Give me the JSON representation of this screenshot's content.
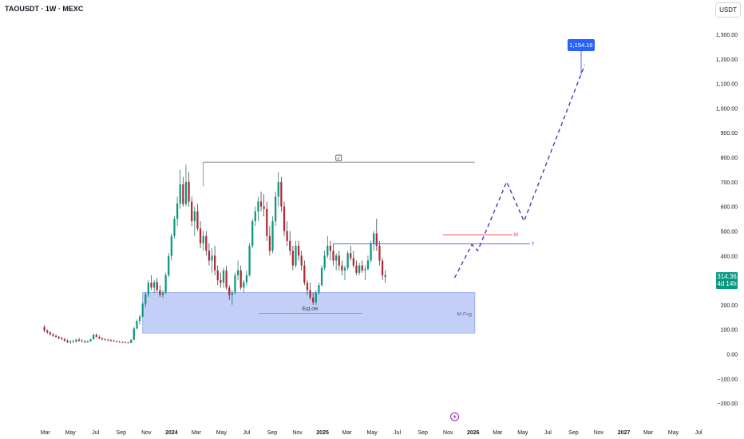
{
  "header": {
    "symbol": "TAOUSDT · 1W · MEXC",
    "currency_button": "USDT"
  },
  "last_price": {
    "value": "314.36",
    "countdown": "4d 14h",
    "color": "#089981"
  },
  "colors": {
    "up": "#089981",
    "down": "#b22833",
    "zone_fill": "#b9c7f5",
    "zone_stroke": "#8b9fe0",
    "projection": "#3f2bb5",
    "level_m": "#f23645",
    "level_y": "#2962ff",
    "box_line": "#787b86",
    "accent": "#9c27b0"
  },
  "chart_data": {
    "type": "candlestick",
    "title": "TAOUSDT · 1W · MEXC",
    "y_unit": "USDT",
    "ylim": [
      -240,
      1330
    ],
    "y_ticks": [
      -200,
      -100,
      0,
      100,
      200,
      300,
      400,
      500,
      600,
      700,
      800,
      900,
      1000,
      1100,
      1200,
      1300
    ],
    "y_tick_labels": [
      "−200.00",
      "−100.00",
      "0.00",
      "100.00",
      "200.00",
      "300.00",
      "400.00",
      "500.00",
      "600.00",
      "700.00",
      "800.00",
      "900.00",
      "1,000.00",
      "1,100.00",
      "1,200.00",
      "1,300.00"
    ],
    "x_range": [
      "2023-02-20",
      "2027-07-26"
    ],
    "x_ticks": [
      {
        "date": "2023-03-01",
        "label": "Mar",
        "bold": false
      },
      {
        "date": "2023-05-01",
        "label": "May",
        "bold": false
      },
      {
        "date": "2023-07-01",
        "label": "Jul",
        "bold": false
      },
      {
        "date": "2023-09-01",
        "label": "Sep",
        "bold": false
      },
      {
        "date": "2023-11-01",
        "label": "Nov",
        "bold": false
      },
      {
        "date": "2024-01-01",
        "label": "2024",
        "bold": true
      },
      {
        "date": "2024-03-01",
        "label": "Mar",
        "bold": false
      },
      {
        "date": "2024-05-01",
        "label": "May",
        "bold": false
      },
      {
        "date": "2024-07-01",
        "label": "Jul",
        "bold": false
      },
      {
        "date": "2024-09-01",
        "label": "Sep",
        "bold": false
      },
      {
        "date": "2024-11-01",
        "label": "Nov",
        "bold": false
      },
      {
        "date": "2025-01-01",
        "label": "2025",
        "bold": true
      },
      {
        "date": "2025-03-01",
        "label": "Mar",
        "bold": false
      },
      {
        "date": "2025-05-01",
        "label": "May",
        "bold": false
      },
      {
        "date": "2025-07-01",
        "label": "Jul",
        "bold": false
      },
      {
        "date": "2025-09-01",
        "label": "Sep",
        "bold": false
      },
      {
        "date": "2025-11-01",
        "label": "Nov",
        "bold": false
      },
      {
        "date": "2026-01-01",
        "label": "2026",
        "bold": true
      },
      {
        "date": "2026-03-01",
        "label": "Mar",
        "bold": false
      },
      {
        "date": "2026-05-01",
        "label": "May",
        "bold": false
      },
      {
        "date": "2026-07-01",
        "label": "Jul",
        "bold": false
      },
      {
        "date": "2026-09-01",
        "label": "Sep",
        "bold": false
      },
      {
        "date": "2026-11-01",
        "label": "Nov",
        "bold": false
      },
      {
        "date": "2027-01-01",
        "label": "2027",
        "bold": true
      },
      {
        "date": "2027-03-01",
        "label": "Mar",
        "bold": false
      },
      {
        "date": "2027-05-01",
        "label": "May",
        "bold": false
      },
      {
        "date": "2027-07-01",
        "label": "Jul",
        "bold": false
      }
    ],
    "candles_start": "2023-02-27",
    "candles_interval_days": 7,
    "candles_ohlc": [
      [
        110,
        118,
        88,
        95
      ],
      [
        95,
        100,
        82,
        88
      ],
      [
        88,
        92,
        75,
        80
      ],
      [
        80,
        85,
        70,
        74
      ],
      [
        74,
        80,
        66,
        70
      ],
      [
        70,
        74,
        60,
        64
      ],
      [
        64,
        70,
        56,
        60
      ],
      [
        60,
        66,
        50,
        54
      ],
      [
        54,
        60,
        44,
        48
      ],
      [
        48,
        56,
        40,
        52
      ],
      [
        52,
        58,
        46,
        50
      ],
      [
        50,
        62,
        47,
        58
      ],
      [
        58,
        66,
        50,
        54
      ],
      [
        54,
        60,
        48,
        52
      ],
      [
        52,
        56,
        44,
        48
      ],
      [
        48,
        56,
        45,
        52
      ],
      [
        52,
        62,
        50,
        60
      ],
      [
        60,
        82,
        58,
        78
      ],
      [
        78,
        84,
        66,
        70
      ],
      [
        70,
        76,
        60,
        64
      ],
      [
        64,
        68,
        56,
        60
      ],
      [
        60,
        64,
        54,
        58
      ],
      [
        58,
        62,
        52,
        56
      ],
      [
        56,
        60,
        50,
        54
      ],
      [
        54,
        58,
        50,
        52
      ],
      [
        52,
        56,
        48,
        50
      ],
      [
        50,
        54,
        46,
        48
      ],
      [
        48,
        52,
        45,
        47
      ],
      [
        47,
        51,
        44,
        46
      ],
      [
        46,
        50,
        43,
        45
      ],
      [
        45,
        60,
        44,
        58
      ],
      [
        58,
        110,
        56,
        104
      ],
      [
        104,
        140,
        100,
        134
      ],
      [
        134,
        160,
        120,
        152
      ],
      [
        152,
        210,
        148,
        204
      ],
      [
        204,
        250,
        190,
        242
      ],
      [
        242,
        300,
        232,
        290
      ],
      [
        290,
        320,
        260,
        270
      ],
      [
        270,
        300,
        248,
        292
      ],
      [
        292,
        310,
        250,
        260
      ],
      [
        260,
        280,
        232,
        240
      ],
      [
        240,
        260,
        228,
        250
      ],
      [
        250,
        330,
        245,
        320
      ],
      [
        320,
        410,
        312,
        398
      ],
      [
        398,
        490,
        380,
        480
      ],
      [
        480,
        560,
        470,
        550
      ],
      [
        550,
        640,
        520,
        612
      ],
      [
        612,
        750,
        590,
        690
      ],
      [
        690,
        720,
        600,
        610
      ],
      [
        610,
        770,
        600,
        700
      ],
      [
        700,
        740,
        600,
        620
      ],
      [
        620,
        640,
        520,
        540
      ],
      [
        540,
        600,
        480,
        580
      ],
      [
        580,
        610,
        500,
        510
      ],
      [
        510,
        540,
        430,
        450
      ],
      [
        450,
        500,
        420,
        480
      ],
      [
        480,
        500,
        400,
        420
      ],
      [
        420,
        450,
        360,
        380
      ],
      [
        380,
        430,
        330,
        400
      ],
      [
        400,
        440,
        320,
        340
      ],
      [
        340,
        360,
        280,
        300
      ],
      [
        300,
        330,
        270,
        290
      ],
      [
        290,
        350,
        270,
        340
      ],
      [
        340,
        360,
        260,
        270
      ],
      [
        270,
        280,
        220,
        240
      ],
      [
        240,
        260,
        200,
        250
      ],
      [
        250,
        330,
        242,
        320
      ],
      [
        320,
        380,
        300,
        340
      ],
      [
        340,
        360,
        260,
        270
      ],
      [
        270,
        300,
        250,
        292
      ],
      [
        292,
        340,
        280,
        320
      ],
      [
        320,
        450,
        315,
        440
      ],
      [
        440,
        550,
        430,
        540
      ],
      [
        540,
        600,
        520,
        580
      ],
      [
        580,
        640,
        540,
        620
      ],
      [
        620,
        660,
        580,
        600
      ],
      [
        600,
        650,
        560,
        590
      ],
      [
        590,
        620,
        460,
        480
      ],
      [
        480,
        520,
        400,
        420
      ],
      [
        420,
        560,
        410,
        540
      ],
      [
        540,
        660,
        520,
        640
      ],
      [
        640,
        740,
        600,
        700
      ],
      [
        700,
        720,
        580,
        600
      ],
      [
        600,
        620,
        480,
        500
      ],
      [
        500,
        540,
        440,
        460
      ],
      [
        460,
        500,
        400,
        420
      ],
      [
        420,
        440,
        340,
        360
      ],
      [
        360,
        460,
        350,
        440
      ],
      [
        440,
        460,
        380,
        400
      ],
      [
        400,
        420,
        340,
        360
      ],
      [
        360,
        380,
        280,
        290
      ],
      [
        290,
        300,
        240,
        260
      ],
      [
        260,
        290,
        220,
        230
      ],
      [
        230,
        250,
        200,
        210
      ],
      [
        210,
        260,
        200,
        250
      ],
      [
        250,
        290,
        240,
        280
      ],
      [
        280,
        360,
        275,
        350
      ],
      [
        350,
        420,
        340,
        400
      ],
      [
        400,
        480,
        390,
        440
      ],
      [
        440,
        460,
        380,
        420
      ],
      [
        420,
        450,
        360,
        380
      ],
      [
        380,
        410,
        340,
        400
      ],
      [
        400,
        420,
        340,
        360
      ],
      [
        360,
        380,
        320,
        340
      ],
      [
        340,
        360,
        300,
        350
      ],
      [
        350,
        420,
        340,
        410
      ],
      [
        410,
        440,
        380,
        390
      ],
      [
        390,
        420,
        350,
        360
      ],
      [
        360,
        380,
        320,
        330
      ],
      [
        330,
        370,
        320,
        360
      ],
      [
        360,
        380,
        330,
        340
      ],
      [
        340,
        360,
        300,
        345
      ],
      [
        345,
        400,
        340,
        380
      ],
      [
        380,
        460,
        370,
        450
      ],
      [
        450,
        500,
        420,
        490
      ],
      [
        490,
        550,
        420,
        440
      ],
      [
        440,
        460,
        360,
        380
      ],
      [
        380,
        390,
        300,
        320
      ],
      [
        320,
        340,
        290,
        314
      ]
    ],
    "annotations": {
      "range_box": {
        "x1": "2024-03-18",
        "x2": "2026-01-05",
        "top": 780,
        "label": "✓"
      },
      "demand_zone": {
        "x1": "2023-10-23",
        "x2": "2026-01-05",
        "y_top": 250,
        "y_bottom": 85,
        "label": "M-Fvg"
      },
      "eq_low": {
        "x1": "2024-07-29",
        "x2": "2025-04-07",
        "y": 165,
        "label": "EqLow"
      },
      "level_m": {
        "x1": "2025-10-20",
        "x2": "2026-04-06",
        "y": 485,
        "label": "M"
      },
      "level_y": {
        "x1": "2025-01-27",
        "x2": "2026-05-18",
        "y": 448,
        "label": "Y"
      },
      "target": {
        "date": "2026-09-14",
        "value": 1154.16,
        "label": "1,154.16"
      },
      "projection": [
        {
          "date": "2025-11-17",
          "value": 310
        },
        {
          "date": "2025-12-29",
          "value": 445
        },
        {
          "date": "2026-01-12",
          "value": 420
        },
        {
          "date": "2026-03-23",
          "value": 700
        },
        {
          "date": "2026-05-04",
          "value": 540
        },
        {
          "date": "2026-09-28",
          "value": 1175
        }
      ]
    }
  }
}
